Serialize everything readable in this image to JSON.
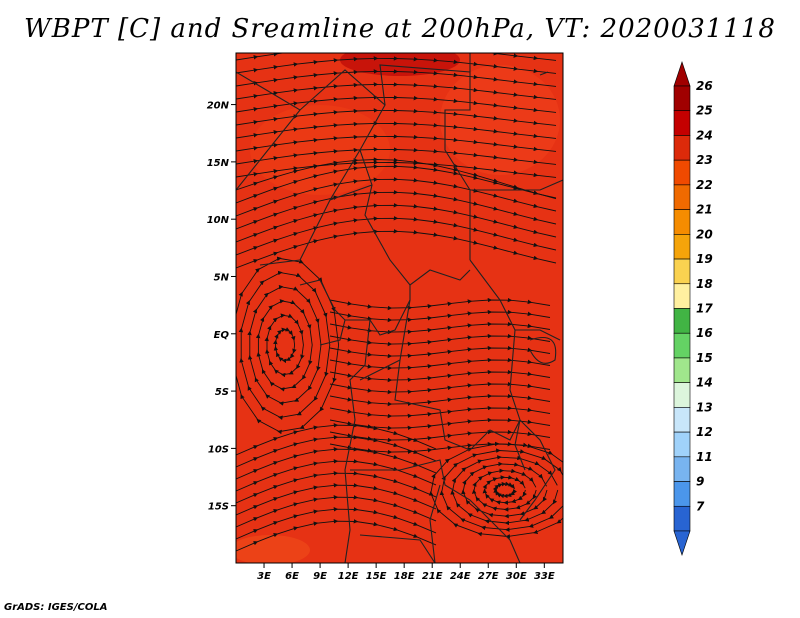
{
  "title": "WBPT [C] and Sreamline at 200hPa, VT: 2020031118",
  "credit": "GrADS: IGES/COLA",
  "map": {
    "lon_range": [
      0,
      35
    ],
    "lat_range": [
      -20,
      24.5
    ],
    "lat_ticks": [
      {
        "value": 20,
        "label": "20N"
      },
      {
        "value": 15,
        "label": "15N"
      },
      {
        "value": 10,
        "label": "10N"
      },
      {
        "value": 5,
        "label": "5N"
      },
      {
        "value": 0,
        "label": "EQ"
      },
      {
        "value": -5,
        "label": "5S"
      },
      {
        "value": -10,
        "label": "10S"
      },
      {
        "value": -15,
        "label": "15S"
      }
    ],
    "lon_ticks": [
      {
        "value": 3,
        "label": "3E"
      },
      {
        "value": 6,
        "label": "6E"
      },
      {
        "value": 9,
        "label": "9E"
      },
      {
        "value": 12,
        "label": "12E"
      },
      {
        "value": 15,
        "label": "15E"
      },
      {
        "value": 18,
        "label": "18E"
      },
      {
        "value": 21,
        "label": "21E"
      },
      {
        "value": 24,
        "label": "24E"
      },
      {
        "value": 27,
        "label": "27E"
      },
      {
        "value": 30,
        "label": "30E"
      },
      {
        "value": 33,
        "label": "33E"
      }
    ],
    "fill_color": "#e63214",
    "stream_color": "#111111",
    "border_color": "#222222"
  },
  "colorbar": {
    "levels": [
      "26",
      "25",
      "24",
      "23",
      "22",
      "21",
      "20",
      "19",
      "18",
      "17",
      "16",
      "15",
      "14",
      "13",
      "12",
      "11",
      "9",
      "7"
    ],
    "colors": [
      "#a00000",
      "#c40000",
      "#dc2a0a",
      "#f04a00",
      "#f06a00",
      "#f58c00",
      "#f5a40a",
      "#fad250",
      "#fff0a0",
      "#41b444",
      "#64d264",
      "#a0e68c",
      "#dcf5dc",
      "#c8e6fa",
      "#a0d2fa",
      "#78b4f0",
      "#4b96eb",
      "#2864d2"
    ]
  }
}
